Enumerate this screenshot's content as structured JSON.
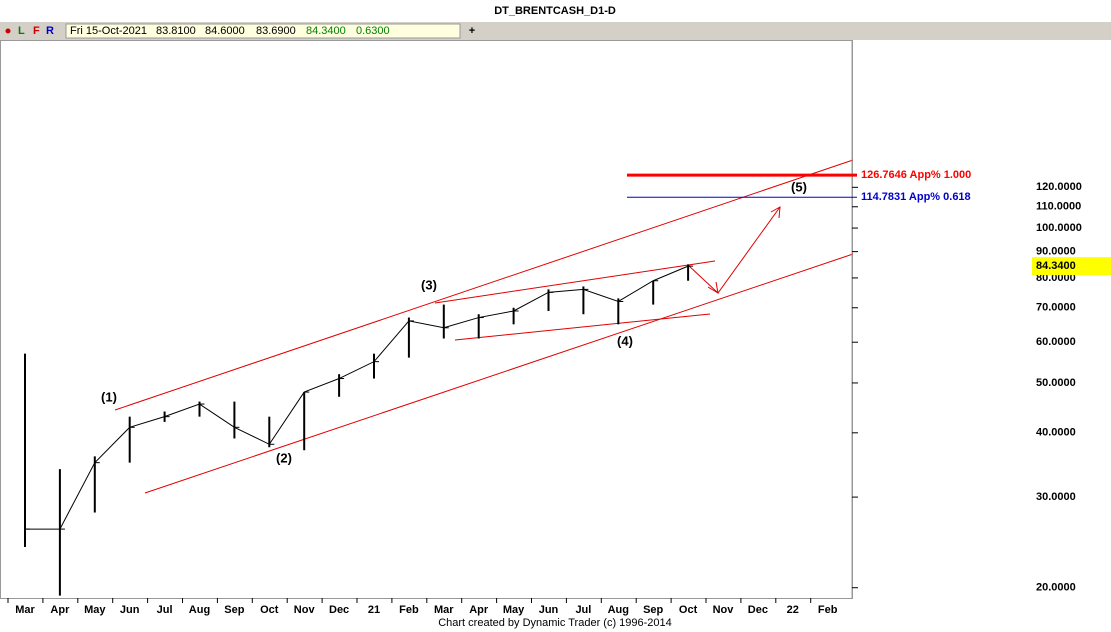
{
  "title": "DT_BRENTCASH_D1-D",
  "toolbar": {
    "buttons": [
      "L",
      "F",
      "R"
    ],
    "info": [
      "Fri 15-Oct-2021",
      "83.8100",
      "84.6000",
      "83.6900",
      "84.3400",
      "0.6300"
    ],
    "add": "+"
  },
  "chart_data": {
    "type": "hlc",
    "categories": [
      "Mar",
      "Apr",
      "May",
      "Jun",
      "Jul",
      "Aug",
      "Sep",
      "Oct",
      "Nov",
      "Dec",
      "21",
      "Feb",
      "Mar",
      "Apr",
      "May",
      "Jun",
      "Jul",
      "Aug",
      "Sep",
      "Oct",
      "Nov",
      "Dec",
      "22",
      "Feb"
    ],
    "high": [
      57,
      34,
      36,
      43,
      44,
      46,
      46,
      43,
      48,
      52,
      57,
      67,
      71,
      68,
      70,
      76,
      77,
      73,
      79,
      85,
      null,
      null,
      null,
      null
    ],
    "low": [
      24,
      19.3,
      28,
      35,
      42,
      43,
      39,
      37.5,
      37,
      47,
      51,
      56,
      61,
      61,
      65,
      69,
      68,
      65,
      71,
      79,
      null,
      null,
      null,
      null
    ],
    "close": [
      26,
      26,
      35,
      41,
      43,
      45.5,
      41,
      38,
      48,
      51,
      55,
      66,
      64,
      67,
      69,
      75,
      76,
      72,
      79,
      84.34,
      null,
      null,
      null,
      null
    ],
    "color": "#000000",
    "log_scale": true,
    "ylim": [
      19.1,
      232
    ],
    "yticks": [
      {
        "value": 20,
        "label": "20.0000"
      },
      {
        "value": 30,
        "label": "30.0000"
      },
      {
        "value": 40,
        "label": "40.0000"
      },
      {
        "value": 50,
        "label": "50.0000"
      },
      {
        "value": 60,
        "label": "60.0000"
      },
      {
        "value": 70,
        "label": "70.0000"
      },
      {
        "value": 80,
        "label": "80.0000"
      },
      {
        "value": 90,
        "label": "90.0000"
      },
      {
        "value": 100,
        "label": "100.0000"
      },
      {
        "value": 110,
        "label": "110.0000"
      },
      {
        "value": 120,
        "label": "120.0000"
      }
    ],
    "last_price": {
      "value": 84.34,
      "label": "84.3400"
    },
    "levels": [
      {
        "value": 126.7646,
        "label": "126.7646 App% 1.000",
        "color": "#ff0000",
        "line_width": 3
      },
      {
        "value": 114.7831,
        "label": "114.7831 App% 0.618",
        "color": "#0000cc",
        "line_width": 1
      }
    ],
    "annotations": [
      "(1)",
      "(2)",
      "(3)",
      "(4)",
      "(5)"
    ]
  },
  "footer": "Chart created by Dynamic Trader  (c) 1996-2014"
}
